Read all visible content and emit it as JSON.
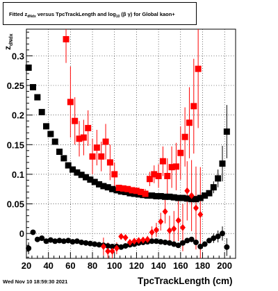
{
  "canvas": {
    "title_prefix": "Fitted  z",
    "title_sub": "dNdx",
    "title_mid": "  versus TpcTrackLength and log",
    "title_sub2": "10",
    "title_suffix": " (β  γ) for Global kaon+",
    "date": "Wed Nov 10 18:59:30 2021"
  },
  "chart_data": {
    "type": "scatter",
    "xlabel": "TpcTrackLength (cm)",
    "ylabel": "z_dNdx",
    "xlim": [
      20,
      210
    ],
    "ylim": [
      -0.042,
      0.345
    ],
    "x_ticks": [
      20,
      40,
      60,
      80,
      100,
      120,
      140,
      160,
      180,
      200
    ],
    "y_ticks": [
      0,
      0.05,
      0.1,
      0.15,
      0.2,
      0.25,
      0.3
    ],
    "y_tick_labels": [
      "0",
      "0.05",
      "0.1",
      "0.15",
      "0.2",
      "0.25",
      "0.3"
    ],
    "grid": true,
    "colors": {
      "black": "#000000",
      "red": "#ff0000"
    },
    "series": [
      {
        "marker": "square",
        "color": "#000000",
        "points": [
          [
            22,
            0.28,
            0
          ],
          [
            26,
            0.247,
            0
          ],
          [
            30,
            0.23,
            0
          ],
          [
            34,
            0.205,
            0
          ],
          [
            38,
            0.181,
            0
          ],
          [
            42,
            0.168,
            0
          ],
          [
            46,
            0.155,
            0
          ],
          [
            50,
            0.138,
            0
          ],
          [
            54,
            0.127,
            0
          ],
          [
            58,
            0.115,
            0
          ],
          [
            62,
            0.108,
            0
          ],
          [
            66,
            0.103,
            0
          ],
          [
            70,
            0.099,
            0
          ],
          [
            74,
            0.095,
            0
          ],
          [
            78,
            0.091,
            0
          ],
          [
            82,
            0.087,
            0
          ],
          [
            86,
            0.083,
            0
          ],
          [
            90,
            0.08,
            0
          ],
          [
            94,
            0.078,
            0
          ],
          [
            98,
            0.075,
            0
          ],
          [
            102,
            0.073,
            0
          ],
          [
            106,
            0.071,
            0
          ],
          [
            110,
            0.07,
            0
          ],
          [
            114,
            0.068,
            0
          ],
          [
            118,
            0.067,
            0
          ],
          [
            122,
            0.066,
            0
          ],
          [
            126,
            0.065,
            0
          ],
          [
            130,
            0.064,
            0
          ],
          [
            134,
            0.064,
            0
          ],
          [
            138,
            0.063,
            0
          ],
          [
            142,
            0.063,
            0
          ],
          [
            146,
            0.062,
            0
          ],
          [
            150,
            0.062,
            0
          ],
          [
            154,
            0.061,
            0
          ],
          [
            158,
            0.06,
            0
          ],
          [
            162,
            0.06,
            0
          ],
          [
            166,
            0.059,
            0
          ],
          [
            170,
            0.058,
            0
          ],
          [
            174,
            0.058,
            0
          ],
          [
            178,
            0.06,
            0
          ],
          [
            182,
            0.064,
            0
          ],
          [
            186,
            0.068,
            0
          ],
          [
            190,
            0.078,
            0.01
          ],
          [
            194,
            0.093,
            0.015
          ],
          [
            198,
            0.118,
            0.03
          ],
          [
            202,
            0.172,
            0.045
          ]
        ]
      },
      {
        "marker": "circle",
        "color": "#000000",
        "points": [
          [
            22,
            -0.025,
            0.01
          ],
          [
            26,
            0.002,
            0
          ],
          [
            30,
            -0.01,
            0
          ],
          [
            34,
            -0.008,
            0
          ],
          [
            38,
            -0.013,
            0
          ],
          [
            42,
            -0.011,
            0
          ],
          [
            46,
            -0.013,
            0
          ],
          [
            50,
            -0.012,
            0
          ],
          [
            54,
            -0.013,
            0
          ],
          [
            58,
            -0.012,
            0
          ],
          [
            62,
            -0.014,
            0
          ],
          [
            66,
            -0.013,
            0
          ],
          [
            70,
            -0.015,
            0
          ],
          [
            74,
            -0.016,
            0
          ],
          [
            78,
            -0.017,
            0
          ],
          [
            82,
            -0.018,
            0
          ],
          [
            86,
            -0.019,
            0
          ],
          [
            90,
            -0.02,
            0
          ],
          [
            94,
            -0.021,
            0
          ],
          [
            98,
            -0.022,
            0
          ],
          [
            102,
            -0.022,
            0
          ],
          [
            106,
            -0.023,
            0
          ],
          [
            110,
            -0.021,
            0
          ],
          [
            114,
            -0.019,
            0
          ],
          [
            118,
            -0.018,
            0
          ],
          [
            122,
            -0.016,
            0
          ],
          [
            126,
            -0.015,
            0
          ],
          [
            130,
            -0.014,
            0
          ],
          [
            134,
            -0.013,
            0
          ],
          [
            138,
            -0.013,
            0
          ],
          [
            142,
            -0.014,
            0
          ],
          [
            146,
            -0.015,
            0
          ],
          [
            150,
            -0.016,
            0
          ],
          [
            154,
            -0.018,
            0
          ],
          [
            158,
            -0.02,
            0
          ],
          [
            162,
            -0.016,
            0
          ],
          [
            166,
            -0.012,
            0
          ],
          [
            170,
            -0.01,
            0
          ],
          [
            174,
            -0.015,
            0
          ],
          [
            178,
            -0.022,
            0
          ],
          [
            182,
            -0.018,
            0
          ],
          [
            186,
            -0.012,
            0
          ],
          [
            190,
            -0.008,
            0.008
          ],
          [
            194,
            -0.005,
            0.01
          ],
          [
            198,
            0.0,
            0.012
          ],
          [
            202,
            -0.023,
            0.015
          ]
        ]
      },
      {
        "marker": "square",
        "color": "#ff0000",
        "points": [
          [
            56,
            0.328,
            0.04
          ],
          [
            60,
            0.222,
            0.06
          ],
          [
            64,
            0.19,
            0.04
          ],
          [
            68,
            0.16,
            0.03
          ],
          [
            72,
            0.162,
            0.03
          ],
          [
            76,
            0.178,
            0.03
          ],
          [
            80,
            0.13,
            0.03
          ],
          [
            84,
            0.145,
            0.03
          ],
          [
            88,
            0.13,
            0.025
          ],
          [
            92,
            0.155,
            0.03
          ],
          [
            96,
            0.12,
            0.03
          ],
          [
            100,
            0.1,
            0.02
          ],
          [
            104,
            0.077,
            0.005
          ],
          [
            108,
            0.076,
            0.005
          ],
          [
            112,
            0.075,
            0.005
          ],
          [
            116,
            0.073,
            0.005
          ],
          [
            120,
            0.072,
            0.005
          ],
          [
            124,
            0.07,
            0.006
          ],
          [
            128,
            0.067,
            0.008
          ],
          [
            132,
            0.092,
            0.012
          ],
          [
            136,
            0.1,
            0.015
          ],
          [
            140,
            0.097,
            0.02
          ],
          [
            144,
            0.122,
            0.025
          ],
          [
            148,
            0.097,
            0.03
          ],
          [
            152,
            0.112,
            0.035
          ],
          [
            156,
            0.113,
            0.04
          ],
          [
            160,
            0.136,
            0.045
          ],
          [
            164,
            0.163,
            0.05
          ],
          [
            168,
            0.187,
            0.06
          ],
          [
            172,
            0.215,
            0.08
          ],
          [
            176,
            0.278,
            0.1
          ]
        ]
      },
      {
        "marker": "diamond",
        "color": "#ff0000",
        "points": [
          [
            90,
            -0.022,
            0.015
          ],
          [
            94,
            -0.03,
            0.015
          ],
          [
            98,
            -0.03,
            0.012
          ],
          [
            102,
            -0.025,
            0.01
          ],
          [
            106,
            -0.005,
            0.005
          ],
          [
            110,
            -0.007,
            0.005
          ],
          [
            114,
            -0.015,
            0.005
          ],
          [
            118,
            -0.013,
            0.005
          ],
          [
            122,
            -0.012,
            0.005
          ],
          [
            126,
            -0.011,
            0.005
          ],
          [
            130,
            -0.01,
            0.006
          ],
          [
            134,
            0.002,
            0.01
          ],
          [
            138,
            0.006,
            0.012
          ],
          [
            142,
            0.02,
            0.015
          ],
          [
            146,
            0.037,
            0.02
          ],
          [
            150,
            0.005,
            0.025
          ],
          [
            154,
            0.008,
            0.03
          ],
          [
            158,
            0.022,
            0.035
          ],
          [
            162,
            0.01,
            0.04
          ],
          [
            166,
            0.072,
            0.05
          ],
          [
            170,
            0.064,
            0.06
          ],
          [
            174,
            0.043,
            0.07
          ],
          [
            178,
            0.032,
            0.08
          ]
        ]
      }
    ]
  }
}
